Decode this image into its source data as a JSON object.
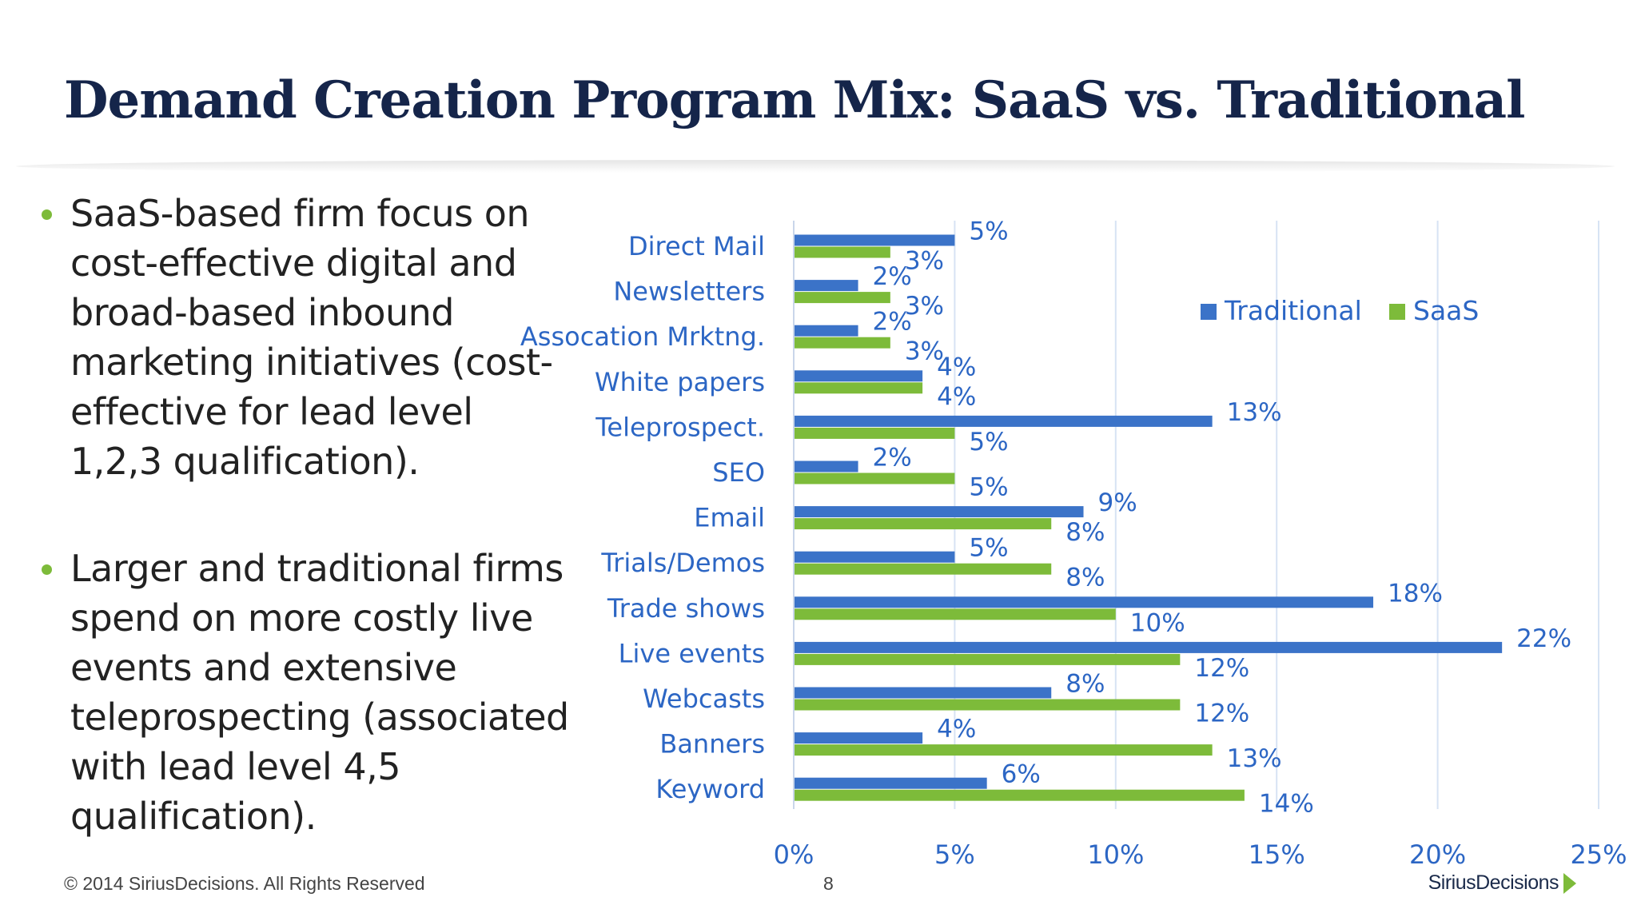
{
  "slide": {
    "title": "Demand Creation Program Mix: SaaS vs. Traditional",
    "bullets": [
      "SaaS-based firm focus on cost-effective digital and broad-based inbound marketing initiatives (cost-effective for lead level 1,2,3 qualification).",
      "Larger and traditional firms spend on more costly live events and extensive teleprospecting (associated with lead level 4,5 qualification)."
    ],
    "footer": {
      "copyright": "© 2014 SiriusDecisions. All Rights Reserved",
      "page_number": "8",
      "logo_text": "SiriusDecisions"
    }
  },
  "colors": {
    "traditional": "#3b73c8",
    "saas": "#7dbb3a",
    "label_text": "#2c66c4",
    "gridline": "#d7e3f4",
    "title": "#15254a"
  },
  "chart_data": {
    "type": "bar",
    "orientation": "horizontal",
    "categories": [
      "Direct Mail",
      "Newsletters",
      "Assocation Mrktng.",
      "White papers",
      "Teleprospect.",
      "SEO",
      "Email",
      "Trials/Demos",
      "Trade shows",
      "Live events",
      "Webcasts",
      "Banners",
      "Keyword"
    ],
    "series": [
      {
        "name": "Traditional",
        "values": [
          5,
          2,
          2,
          4,
          13,
          2,
          9,
          5,
          18,
          22,
          8,
          4,
          6
        ]
      },
      {
        "name": "SaaS",
        "values": [
          3,
          3,
          3,
          4,
          5,
          5,
          8,
          8,
          10,
          12,
          12,
          13,
          14
        ]
      }
    ],
    "value_suffix": "%",
    "xlim": [
      0,
      25
    ],
    "x_ticks": [
      0,
      5,
      10,
      15,
      20,
      25
    ],
    "x_tick_labels": [
      "0%",
      "5%",
      "10%",
      "15%",
      "20%",
      "25%"
    ],
    "grid": true,
    "legend_position": "top-right"
  }
}
